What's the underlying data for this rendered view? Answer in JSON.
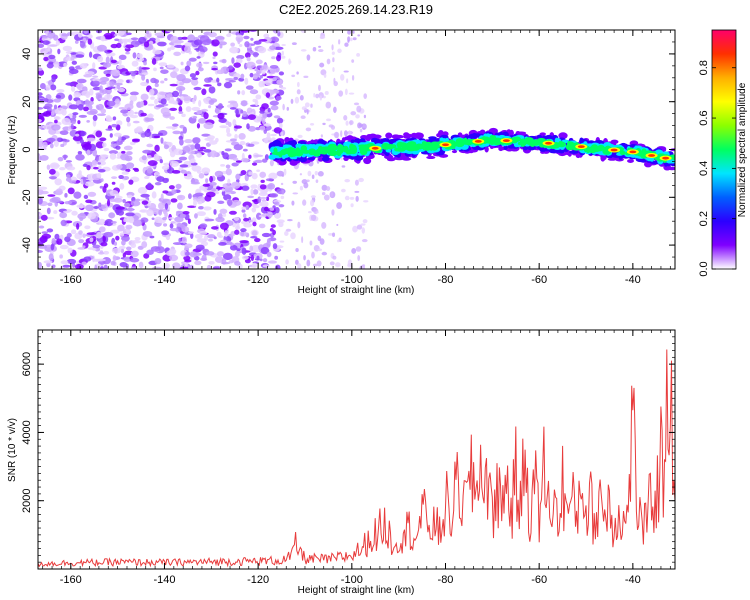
{
  "title": "C2E2.2025.269.14.23.R19",
  "chart_data": [
    {
      "type": "heatmap",
      "xlabel": "Height of straight line (km)",
      "ylabel": "Frequency (Hz)",
      "xlim": [
        -167,
        -31
      ],
      "ylim": [
        -50,
        50
      ],
      "xticks": [
        -160,
        -140,
        -120,
        -100,
        -80,
        -60,
        -40
      ],
      "yticks": [
        -40,
        -20,
        0,
        20,
        40
      ],
      "colorbar": {
        "label": "Normalized spectral amplitude",
        "range": [
          0,
          0.95
        ],
        "ticks": [
          0.0,
          0.2,
          0.4,
          0.6,
          0.8
        ],
        "colormap": [
          "#ffffff",
          "#7f00ff",
          "#2b00ff",
          "#0060ff",
          "#00e5ff",
          "#00ff60",
          "#8cff00",
          "#ffff00",
          "#ffb000",
          "#ff3000",
          "#ff006a"
        ]
      },
      "ridge": {
        "description_points_x": [
          -117,
          -100,
          -80,
          -70,
          -60,
          -50,
          -40,
          -32
        ],
        "description_points_y": [
          -1,
          0,
          2,
          4,
          3,
          1,
          -1,
          -4
        ]
      }
    },
    {
      "type": "line",
      "xlabel": "Height of straight line (km)",
      "ylabel": "SNR (10 * v/v)",
      "xlim": [
        -167,
        -31
      ],
      "ylim": [
        0,
        7000
      ],
      "xticks": [
        -160,
        -140,
        -120,
        -100,
        -80,
        -60,
        -40
      ],
      "yticks": [
        2000,
        4000,
        6000
      ],
      "series": [
        {
          "name": "SNR",
          "color": "#e83c3c",
          "x": [
            -167,
            -160,
            -150,
            -140,
            -130,
            -120,
            -115,
            -113,
            -112,
            -110,
            -105,
            -100,
            -98,
            -95,
            -93,
            -91,
            -90,
            -88,
            -86,
            -85,
            -83,
            -81,
            -80,
            -79,
            -77,
            -76,
            -74,
            -73,
            -72.5,
            -72,
            -71,
            -70,
            -69,
            -68,
            -67,
            -66,
            -65,
            -64,
            -63,
            -62,
            -61,
            -60,
            -59,
            -58,
            -57,
            -56,
            -55,
            -54,
            -53,
            -52,
            -51,
            -50,
            -49,
            -48,
            -47,
            -46,
            -45,
            -44,
            -43,
            -42,
            -41,
            -40.5,
            -40,
            -39,
            -38,
            -37,
            -36,
            -35,
            -34,
            -33.5,
            -33,
            -32.5,
            -32,
            -31.5,
            -31
          ],
          "y": [
            150,
            180,
            200,
            190,
            210,
            230,
            250,
            350,
            700,
            300,
            280,
            400,
            600,
            1000,
            1300,
            700,
            900,
            1200,
            1000,
            1600,
            1300,
            1100,
            2000,
            1500,
            2600,
            1800,
            2800,
            1900,
            4900,
            2000,
            2900,
            1400,
            2700,
            1600,
            3000,
            1500,
            2700,
            1800,
            3300,
            1700,
            2600,
            1500,
            2900,
            1800,
            2200,
            1300,
            2500,
            1600,
            2000,
            1500,
            2700,
            1700,
            1900,
            1200,
            2300,
            1500,
            2100,
            1100,
            1800,
            1300,
            1600,
            3600,
            4300,
            1800,
            1200,
            1300,
            2300,
            1900,
            3500,
            2000,
            5200,
            6900,
            4200,
            3800,
            2000
          ]
        }
      ]
    }
  ]
}
